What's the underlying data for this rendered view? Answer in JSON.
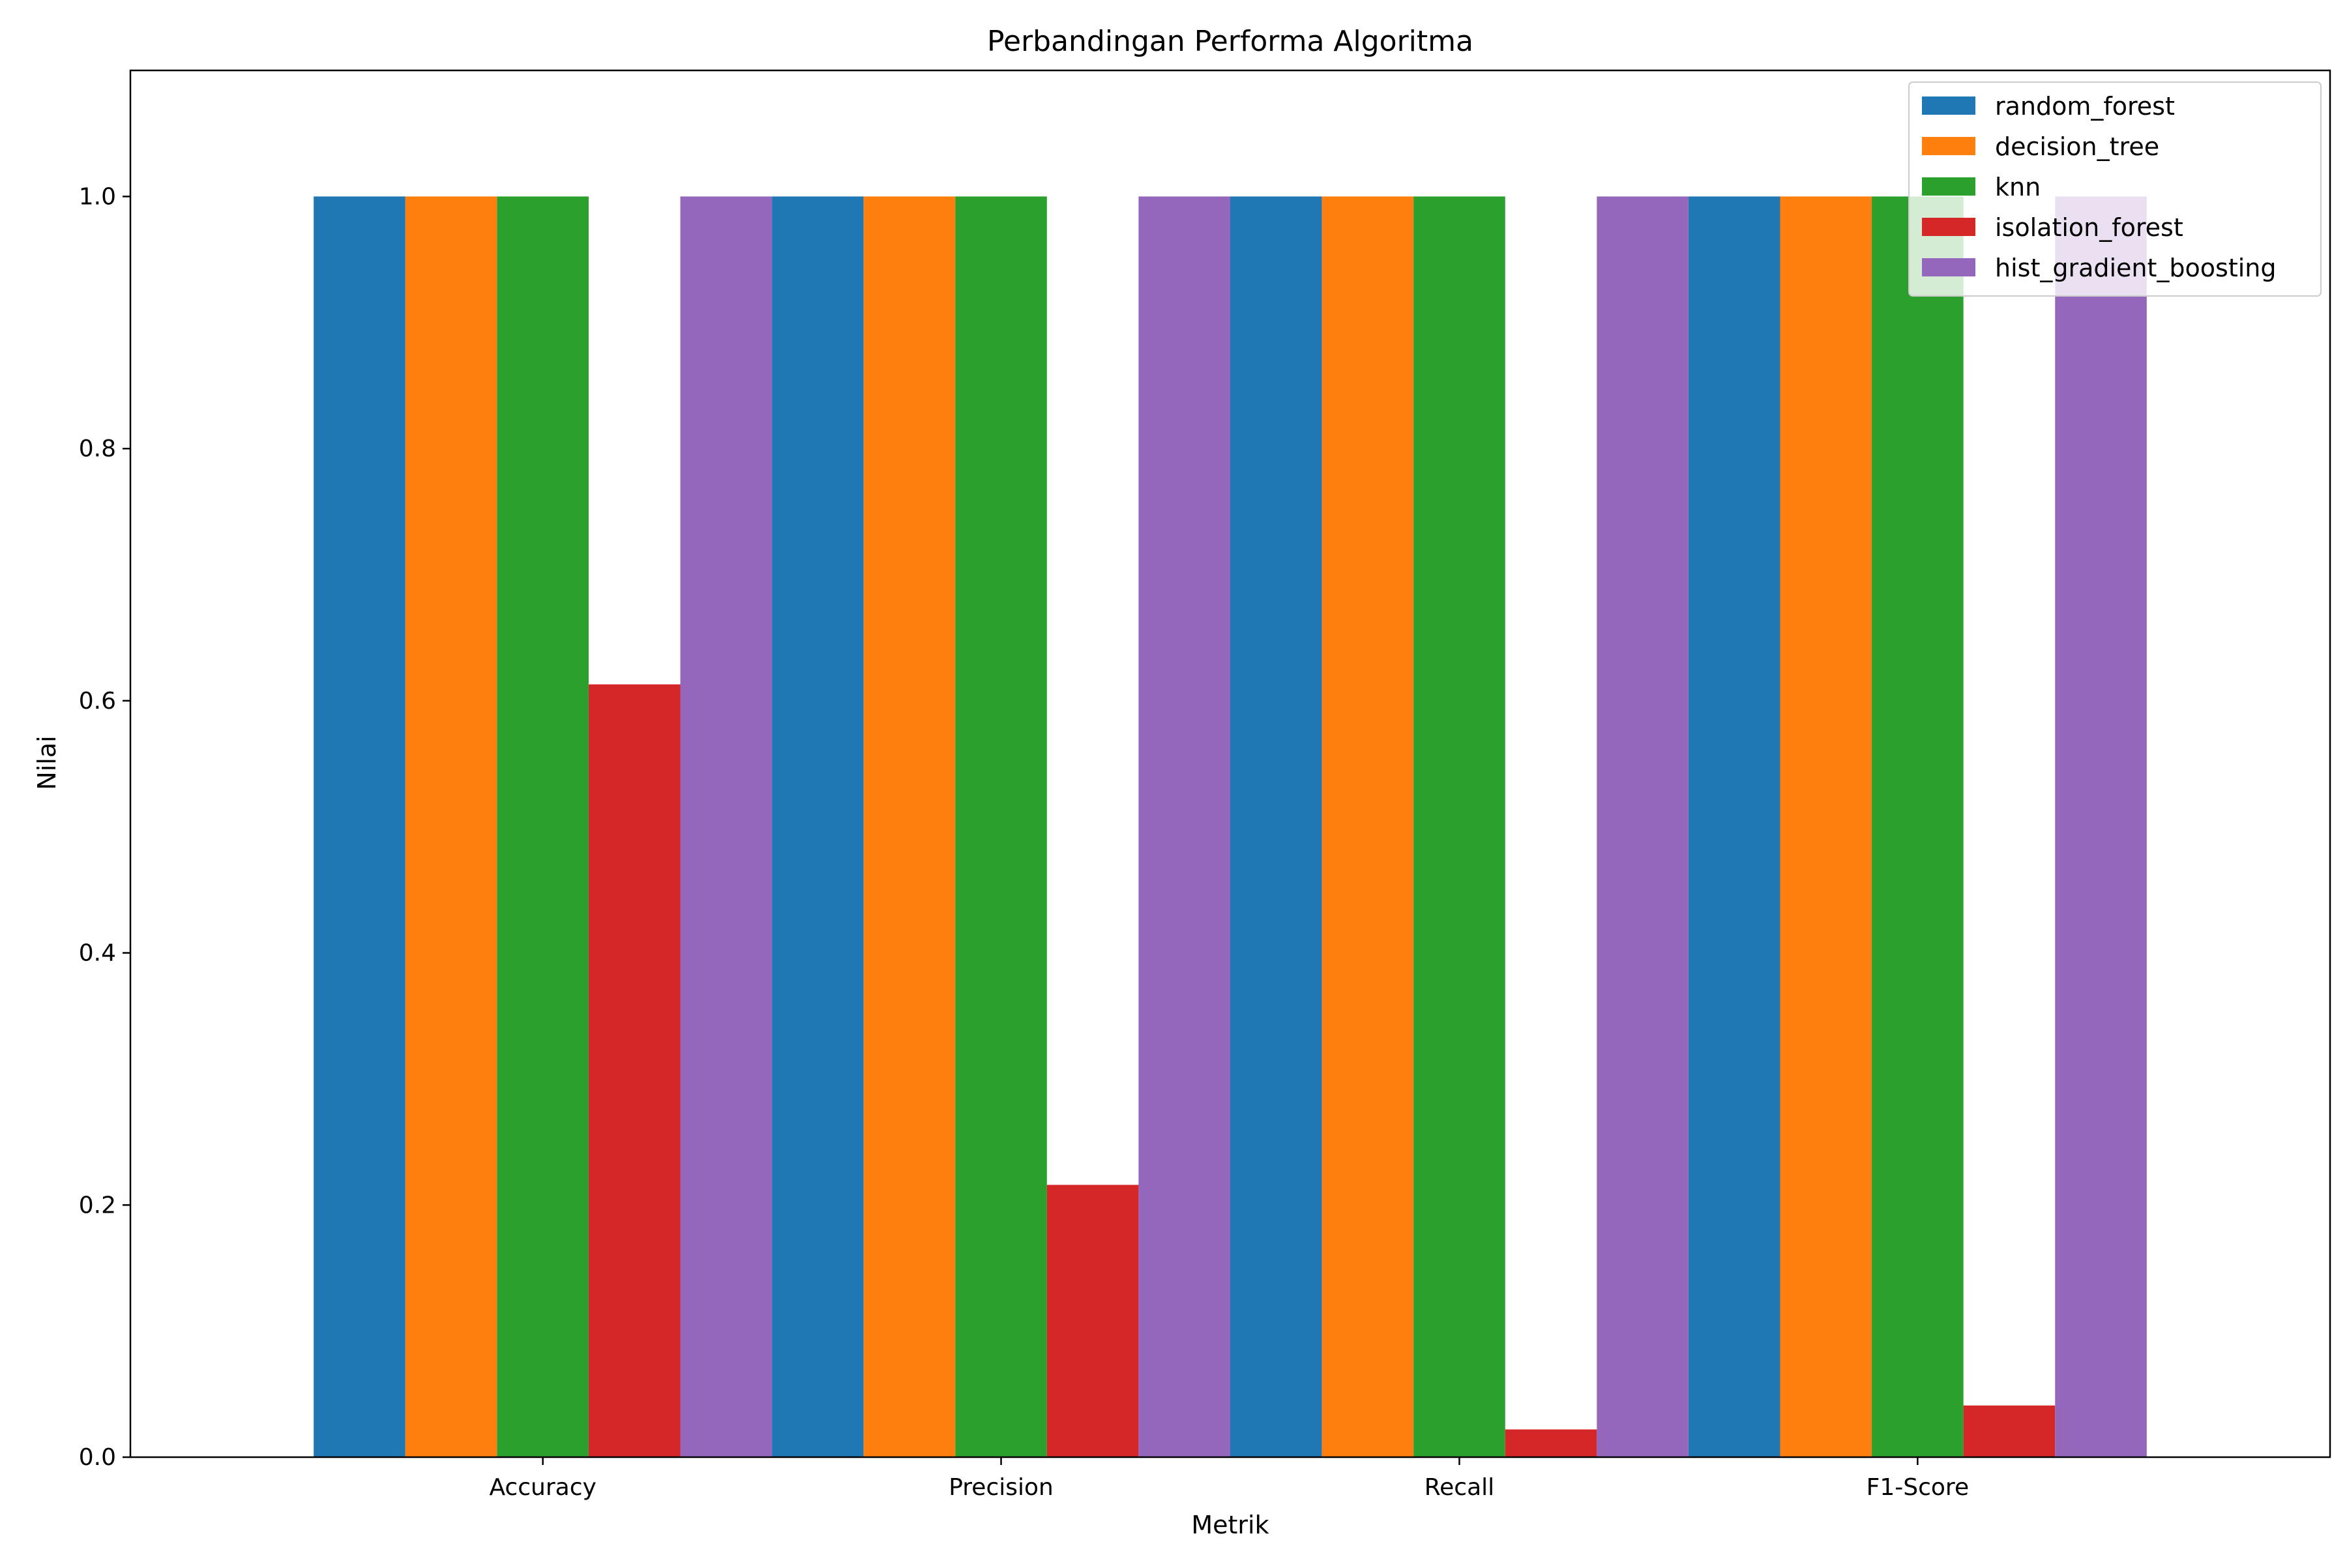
{
  "chart_data": {
    "type": "bar",
    "title": "Perbandingan Performa Algoritma",
    "xlabel": "Metrik",
    "ylabel": "Nilai",
    "categories": [
      "Accuracy",
      "Precision",
      "Recall",
      "F1-Score"
    ],
    "ylim": [
      0,
      1.1
    ],
    "yticks": [
      0.0,
      0.2,
      0.4,
      0.6,
      0.8,
      1.0
    ],
    "ytick_labels": [
      "0.0",
      "0.2",
      "0.4",
      "0.6",
      "0.8",
      "1.0"
    ],
    "grid": false,
    "legend_position": "top-right",
    "series": [
      {
        "name": "random_forest",
        "color": "#1f77b4",
        "values": [
          1.0,
          1.0,
          1.0,
          1.0
        ]
      },
      {
        "name": "decision_tree",
        "color": "#ff7f0e",
        "values": [
          1.0,
          1.0,
          1.0,
          1.0
        ]
      },
      {
        "name": "knn",
        "color": "#2ca02c",
        "values": [
          1.0,
          1.0,
          1.0,
          1.0
        ]
      },
      {
        "name": "isolation_forest",
        "color": "#d62728",
        "values": [
          0.613,
          0.216,
          0.022,
          0.041
        ]
      },
      {
        "name": "hist_gradient_boosting",
        "color": "#9467bd",
        "values": [
          1.0,
          1.0,
          1.0,
          1.0
        ]
      }
    ]
  }
}
